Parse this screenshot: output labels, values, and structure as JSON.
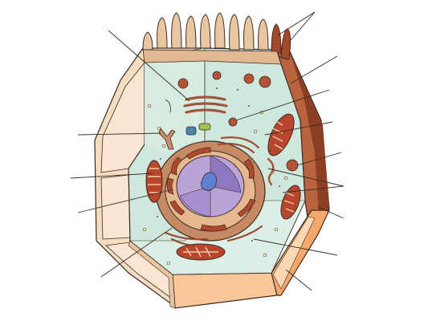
{
  "diagram": {
    "subject": "animal-cell-cutaway",
    "labels": [],
    "leader_line_count": 14,
    "colors": {
      "outer_wall": "#f4dcc0",
      "outer_wall_dark": "#e8c49e",
      "cytoplasm": "#cfe7dc",
      "cytoplasm_light": "#dcefe6",
      "membrane_right": "#b9643f",
      "membrane_right_dark": "#8d3f24",
      "base_orange": "#f5a86c",
      "organelle_red": "#a8432a",
      "organelle_tan": "#d9a27a",
      "nucleus": "#b9a4d8",
      "nucleus_dark": "#7e67b3",
      "nucleolus": "#5f7fd0",
      "outline": "#3b2a22"
    }
  }
}
